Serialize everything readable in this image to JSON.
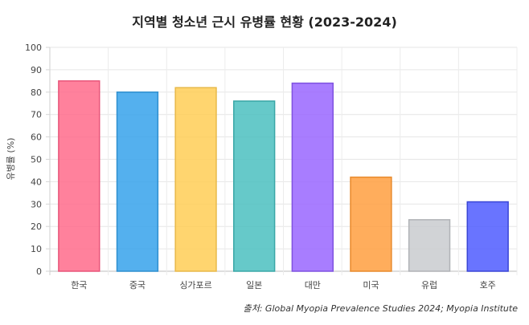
{
  "chart_data": {
    "type": "bar",
    "title": "지역별 청소년 근시 유병률 현황 (2023-2024)",
    "xlabel": "",
    "ylabel": "유병률 (%)",
    "ylim": [
      0,
      100
    ],
    "yticks": [
      0,
      10,
      20,
      30,
      40,
      50,
      60,
      70,
      80,
      90,
      100
    ],
    "grid": true,
    "categories": [
      "한국",
      "중국",
      "싱가포르",
      "일본",
      "대만",
      "미국",
      "유럽",
      "호주"
    ],
    "values": [
      85,
      80,
      82,
      76,
      84,
      42,
      23,
      31
    ],
    "colors": [
      "#ff6b8b",
      "#36a2eb",
      "#ffce56",
      "#4bc0c0",
      "#9966ff",
      "#ff9f40",
      "#c9cbcf",
      "#4f5cff"
    ],
    "borders": [
      "#e8557a",
      "#2f8fcf",
      "#e8b94a",
      "#3aa7a7",
      "#7f52e0",
      "#e88a2c",
      "#b0b2b6",
      "#3a46d6"
    ],
    "source": "출처: Global Myopia Prevalence Studies 2024; Myopia Institute"
  }
}
